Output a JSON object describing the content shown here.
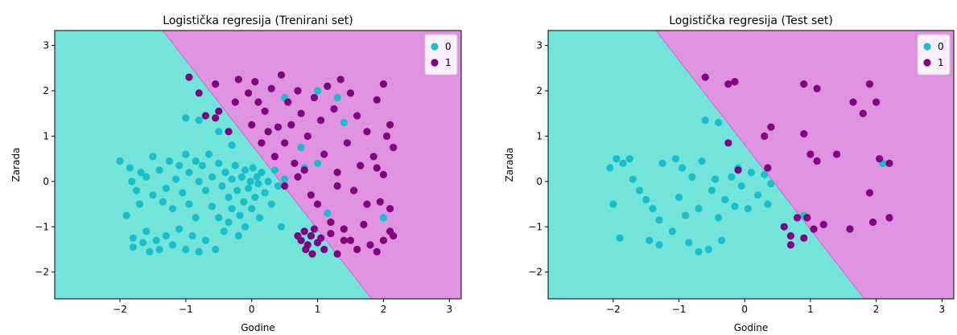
{
  "chart_data": [
    {
      "type": "scatter",
      "title": "Logistička regresija (Trenirani set)",
      "xlabel": "Godine",
      "ylabel": "Zarada",
      "xlim": [
        -2.99,
        3.18
      ],
      "ylim": [
        -2.59,
        3.33
      ],
      "xticks": [
        -2,
        -1,
        0,
        1,
        2,
        3
      ],
      "yticks": [
        -2,
        -1,
        0,
        1,
        2,
        3
      ],
      "xtick_labels": [
        "−2",
        "−1",
        "0",
        "1",
        "2",
        "3"
      ],
      "ytick_labels": [
        "−2",
        "−1",
        "0",
        "1",
        "2",
        "3"
      ],
      "legend_position": "top-right",
      "background_regions": [
        {
          "class": "0",
          "color": "#73e4d9"
        },
        {
          "class": "1",
          "color": "#df92df"
        }
      ],
      "decision_boundary": [
        [
          -1.35,
          3.33
        ],
        [
          1.82,
          -2.59
        ]
      ],
      "series": [
        {
          "name": "0",
          "color": "#17bfcc",
          "points": [
            [
              -2.0,
              0.45
            ],
            [
              -1.9,
              -0.75
            ],
            [
              -1.85,
              0.3
            ],
            [
              -1.82,
              0.0
            ],
            [
              -1.8,
              -1.25
            ],
            [
              -1.8,
              -1.45
            ],
            [
              -1.75,
              -0.2
            ],
            [
              -1.7,
              -0.5
            ],
            [
              -1.68,
              0.2
            ],
            [
              -1.65,
              -1.35
            ],
            [
              -1.6,
              -1.1
            ],
            [
              -1.6,
              0.1
            ],
            [
              -1.55,
              -1.55
            ],
            [
              -1.5,
              -0.3
            ],
            [
              -1.5,
              0.55
            ],
            [
              -1.45,
              -1.3
            ],
            [
              -1.4,
              -1.5
            ],
            [
              -1.4,
              0.25
            ],
            [
              -1.35,
              -0.45
            ],
            [
              -1.3,
              -0.15
            ],
            [
              -1.3,
              -1.2
            ],
            [
              -1.25,
              0.45
            ],
            [
              -1.2,
              -0.6
            ],
            [
              -1.2,
              -1.4
            ],
            [
              -1.15,
              0.05
            ],
            [
              -1.1,
              0.35
            ],
            [
              -1.1,
              -1.05
            ],
            [
              -1.05,
              -0.25
            ],
            [
              -1.0,
              0.6
            ],
            [
              -1.0,
              -1.5
            ],
            [
              -0.95,
              -0.5
            ],
            [
              -0.95,
              0.2
            ],
            [
              -0.9,
              -1.2
            ],
            [
              -0.85,
              0.45
            ],
            [
              -0.85,
              -0.8
            ],
            [
              -0.8,
              0.0
            ],
            [
              -0.8,
              -1.55
            ],
            [
              -0.75,
              0.35
            ],
            [
              -0.7,
              -0.2
            ],
            [
              -0.7,
              -1.3
            ],
            [
              -0.65,
              0.6
            ],
            [
              -0.6,
              -0.55
            ],
            [
              -0.6,
              0.1
            ],
            [
              -0.55,
              -1.5
            ],
            [
              -0.5,
              -0.8
            ],
            [
              -0.5,
              0.4
            ],
            [
              -0.45,
              -0.1
            ],
            [
              -0.42,
              -1.1
            ],
            [
              -0.4,
              0.2
            ],
            [
              -0.35,
              -0.35
            ],
            [
              -0.35,
              -0.9
            ],
            [
              -0.3,
              0.05
            ],
            [
              -0.3,
              -0.6
            ],
            [
              -0.25,
              0.35
            ],
            [
              -0.22,
              -0.2
            ],
            [
              -0.2,
              -1.2
            ],
            [
              -0.18,
              -0.75
            ],
            [
              -0.15,
              0.1
            ],
            [
              -0.12,
              -0.45
            ],
            [
              -0.1,
              0.25
            ],
            [
              -0.1,
              -1.0
            ],
            [
              -0.05,
              -0.15
            ],
            [
              -0.02,
              0.0
            ],
            [
              0.0,
              -0.6
            ],
            [
              0.02,
              0.3
            ],
            [
              0.05,
              -0.35
            ],
            [
              0.08,
              0.1
            ],
            [
              0.1,
              -0.05
            ],
            [
              0.12,
              -0.8
            ],
            [
              0.15,
              0.2
            ],
            [
              0.2,
              -0.25
            ],
            [
              0.25,
              0.0
            ],
            [
              0.3,
              -0.5
            ],
            [
              0.35,
              0.25
            ],
            [
              0.4,
              -0.1
            ],
            [
              0.45,
              -1.0
            ],
            [
              0.5,
              0.05
            ],
            [
              -1.0,
              1.4
            ],
            [
              -0.8,
              1.35
            ],
            [
              -0.5,
              1.1
            ],
            [
              -0.3,
              0.8
            ],
            [
              0.5,
              1.85
            ],
            [
              0.75,
              0.75
            ],
            [
              0.8,
              0.3
            ],
            [
              1.0,
              2.0
            ],
            [
              1.0,
              0.4
            ],
            [
              1.15,
              -0.7
            ],
            [
              1.3,
              1.85
            ],
            [
              1.4,
              1.3
            ],
            [
              2.0,
              -0.8
            ]
          ]
        },
        {
          "name": "1",
          "color": "#800080",
          "points": [
            [
              -0.95,
              2.3
            ],
            [
              -0.8,
              1.95
            ],
            [
              -0.7,
              1.45
            ],
            [
              -0.55,
              2.15
            ],
            [
              -0.5,
              1.55
            ],
            [
              -0.35,
              1.1
            ],
            [
              -0.25,
              1.75
            ],
            [
              -0.55,
              1.4
            ],
            [
              -0.2,
              2.25
            ],
            [
              -0.05,
              1.95
            ],
            [
              0.0,
              1.25
            ],
            [
              0.05,
              2.2
            ],
            [
              0.1,
              1.75
            ],
            [
              0.15,
              0.85
            ],
            [
              0.2,
              1.55
            ],
            [
              0.25,
              1.1
            ],
            [
              0.3,
              2.05
            ],
            [
              0.35,
              0.55
            ],
            [
              0.4,
              1.2
            ],
            [
              0.45,
              2.35
            ],
            [
              0.5,
              0.85
            ],
            [
              0.55,
              1.75
            ],
            [
              0.6,
              1.25
            ],
            [
              0.65,
              0.4
            ],
            [
              0.7,
              2.0
            ],
            [
              0.75,
              1.5
            ],
            [
              0.8,
              0.25
            ],
            [
              0.85,
              1.0
            ],
            [
              0.9,
              -0.3
            ],
            [
              0.95,
              1.85
            ],
            [
              1.0,
              -0.5
            ],
            [
              1.05,
              1.35
            ],
            [
              1.1,
              0.6
            ],
            [
              1.15,
              2.1
            ],
            [
              1.2,
              -0.9
            ],
            [
              1.25,
              1.6
            ],
            [
              1.3,
              0.2
            ],
            [
              1.35,
              2.25
            ],
            [
              1.4,
              -1.3
            ],
            [
              1.45,
              0.85
            ],
            [
              1.5,
              1.95
            ],
            [
              1.55,
              -0.2
            ],
            [
              1.6,
              1.45
            ],
            [
              1.65,
              0.35
            ],
            [
              1.7,
              -0.95
            ],
            [
              1.75,
              1.1
            ],
            [
              1.8,
              -1.4
            ],
            [
              1.85,
              0.55
            ],
            [
              1.9,
              1.8
            ],
            [
              1.95,
              -0.45
            ],
            [
              2.0,
              0.15
            ],
            [
              2.05,
              1.0
            ],
            [
              2.1,
              -1.1
            ],
            [
              2.15,
              0.75
            ],
            [
              2.0,
              2.15
            ],
            [
              2.1,
              1.25
            ],
            [
              0.7,
              -1.2
            ],
            [
              0.75,
              -1.3
            ],
            [
              0.8,
              -1.1
            ],
            [
              0.85,
              -1.4
            ],
            [
              0.9,
              -1.2
            ],
            [
              0.95,
              -1.05
            ],
            [
              1.0,
              -1.35
            ],
            [
              0.82,
              -1.5
            ],
            [
              0.92,
              -1.6
            ],
            [
              1.05,
              -1.25
            ],
            [
              1.1,
              -1.5
            ],
            [
              1.2,
              -1.15
            ],
            [
              1.3,
              -1.6
            ],
            [
              1.4,
              -1.05
            ],
            [
              1.5,
              -1.3
            ],
            [
              1.6,
              -1.5
            ],
            [
              1.9,
              -1.55
            ],
            [
              2.0,
              -1.3
            ],
            [
              2.15,
              -1.2
            ],
            [
              0.5,
              -0.1
            ],
            [
              0.7,
              0.1
            ],
            [
              1.3,
              -0.1
            ],
            [
              1.75,
              -0.5
            ],
            [
              2.1,
              -0.6
            ],
            [
              1.9,
              0.3
            ]
          ]
        }
      ]
    },
    {
      "type": "scatter",
      "title": "Logistička regresija (Test set)",
      "xlabel": "Godine",
      "ylabel": "Zarada",
      "xlim": [
        -2.99,
        3.18
      ],
      "ylim": [
        -2.59,
        3.33
      ],
      "xticks": [
        -2,
        -1,
        0,
        1,
        2,
        3
      ],
      "yticks": [
        -2,
        -1,
        0,
        1,
        2,
        3
      ],
      "xtick_labels": [
        "−2",
        "−1",
        "0",
        "1",
        "2",
        "3"
      ],
      "ytick_labels": [
        "−2",
        "−1",
        "0",
        "1",
        "2",
        "3"
      ],
      "legend_position": "top-right",
      "background_regions": [
        {
          "class": "0",
          "color": "#73e4d9"
        },
        {
          "class": "1",
          "color": "#df92df"
        }
      ],
      "decision_boundary": [
        [
          -1.35,
          3.33
        ],
        [
          1.82,
          -2.59
        ]
      ],
      "series": [
        {
          "name": "0",
          "color": "#17bfcc",
          "points": [
            [
              -2.05,
              0.3
            ],
            [
              -2.0,
              -0.5
            ],
            [
              -1.95,
              0.5
            ],
            [
              -1.9,
              -1.25
            ],
            [
              -1.85,
              0.4
            ],
            [
              -1.75,
              0.5
            ],
            [
              -1.7,
              0.05
            ],
            [
              -1.6,
              -0.2
            ],
            [
              -1.5,
              -0.4
            ],
            [
              -1.45,
              -1.3
            ],
            [
              -1.4,
              -0.6
            ],
            [
              -1.3,
              -0.85
            ],
            [
              -1.25,
              0.4
            ],
            [
              -1.1,
              -1.1
            ],
            [
              -1.05,
              0.5
            ],
            [
              -1.0,
              -0.35
            ],
            [
              -0.95,
              0.3
            ],
            [
              -0.9,
              -0.75
            ],
            [
              -0.85,
              -1.35
            ],
            [
              -0.8,
              0.1
            ],
            [
              -0.7,
              -0.6
            ],
            [
              -0.65,
              0.45
            ],
            [
              -0.55,
              -1.5
            ],
            [
              -0.5,
              -0.2
            ],
            [
              -0.45,
              0.05
            ],
            [
              -0.4,
              -0.8
            ],
            [
              -0.35,
              -1.3
            ],
            [
              -0.3,
              -0.4
            ],
            [
              -0.2,
              0.1
            ],
            [
              -0.15,
              -0.55
            ],
            [
              -0.1,
              0.3
            ],
            [
              -0.05,
              -0.1
            ],
            [
              0.05,
              -0.6
            ],
            [
              0.1,
              0.2
            ],
            [
              0.2,
              -0.3
            ],
            [
              0.3,
              0.15
            ],
            [
              0.35,
              -0.5
            ],
            [
              0.4,
              -0.05
            ],
            [
              -0.6,
              1.35
            ],
            [
              -0.4,
              1.3
            ],
            [
              0.9,
              -0.75
            ],
            [
              2.1,
              0.4
            ],
            [
              -1.3,
              -1.4
            ],
            [
              -0.7,
              -1.55
            ]
          ]
        },
        {
          "name": "1",
          "color": "#800080",
          "points": [
            [
              -0.6,
              2.3
            ],
            [
              -0.25,
              2.15
            ],
            [
              -0.15,
              2.2
            ],
            [
              -0.25,
              0.85
            ],
            [
              -0.1,
              0.25
            ],
            [
              0.3,
              1.0
            ],
            [
              0.4,
              1.2
            ],
            [
              0.35,
              0.3
            ],
            [
              0.9,
              2.15
            ],
            [
              0.9,
              1.05
            ],
            [
              1.0,
              0.6
            ],
            [
              1.1,
              2.05
            ],
            [
              1.1,
              0.45
            ],
            [
              1.2,
              -0.95
            ],
            [
              1.4,
              0.6
            ],
            [
              1.6,
              -1.05
            ],
            [
              1.65,
              1.75
            ],
            [
              1.8,
              1.5
            ],
            [
              1.9,
              2.15
            ],
            [
              2.0,
              1.75
            ],
            [
              2.05,
              0.5
            ],
            [
              1.9,
              -0.25
            ],
            [
              1.95,
              -0.9
            ],
            [
              2.2,
              0.4
            ],
            [
              2.2,
              -0.8
            ],
            [
              0.6,
              -1.0
            ],
            [
              0.7,
              -1.4
            ],
            [
              0.8,
              -0.8
            ],
            [
              0.9,
              -1.25
            ],
            [
              1.05,
              -1.05
            ],
            [
              0.95,
              -0.8
            ],
            [
              0.7,
              -1.2
            ]
          ]
        }
      ]
    }
  ]
}
